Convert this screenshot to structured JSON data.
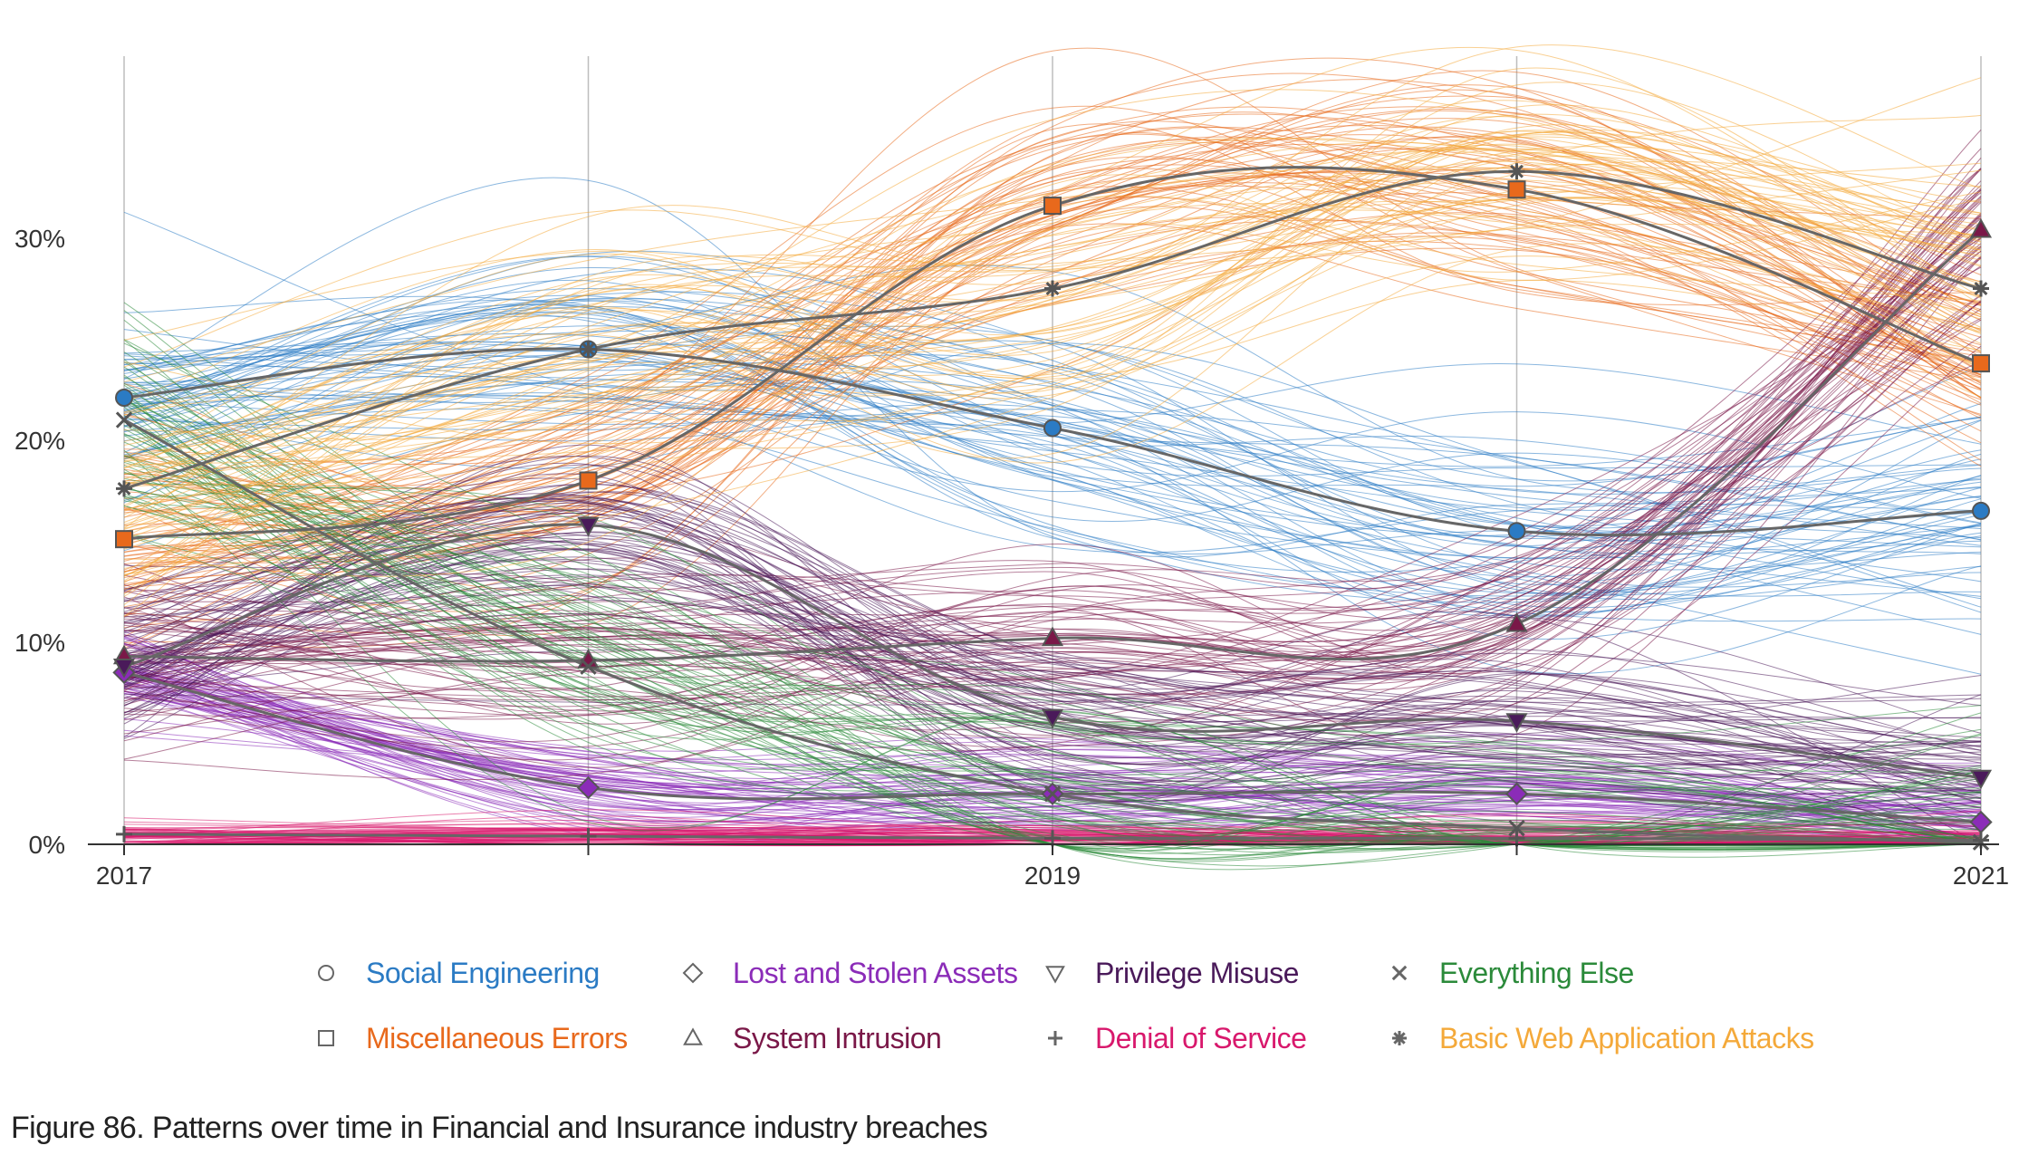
{
  "caption": "Figure 86. Patterns over time in Financial and Insurance industry breaches",
  "chart_data": {
    "type": "line",
    "title": "",
    "xlabel": "",
    "ylabel": "",
    "x": [
      2017,
      2018,
      2019,
      2020,
      2021
    ],
    "x_tick_labels": [
      "2017",
      "",
      "2019",
      "",
      "2021"
    ],
    "y_ticks": [
      0,
      10,
      20,
      30
    ],
    "y_tick_labels": [
      "0%",
      "10%",
      "20%",
      "30%"
    ],
    "ylim": [
      0,
      39
    ],
    "xlim": [
      2017,
      2021
    ],
    "grid": "vertical",
    "legend_position": "bottom",
    "series": [
      {
        "name": "Social Engineering",
        "marker": "circle",
        "color": "#2b7bc4",
        "values": [
          22.1,
          24.5,
          20.6,
          15.5,
          16.5
        ],
        "spread": 3.5
      },
      {
        "name": "Miscellaneous Errors",
        "marker": "square",
        "color": "#e8691c",
        "values": [
          15.1,
          18.0,
          31.6,
          32.4,
          23.8
        ],
        "spread": 3.5
      },
      {
        "name": "Lost and Stolen Assets",
        "marker": "diamond",
        "color": "#8b2cb8",
        "values": [
          8.5,
          2.8,
          2.5,
          2.5,
          1.1
        ],
        "spread": 1.5
      },
      {
        "name": "System Intrusion",
        "marker": "triangle-up",
        "color": "#7a1848",
        "values": [
          9.3,
          9.1,
          10.2,
          10.9,
          30.4
        ],
        "spread": 3.0
      },
      {
        "name": "Privilege Misuse",
        "marker": "triangle-down",
        "color": "#4a1a5a",
        "values": [
          8.8,
          15.8,
          6.3,
          6.1,
          3.3
        ],
        "spread": 2.5
      },
      {
        "name": "Denial of Service",
        "marker": "plus",
        "color": "#d8186c",
        "values": [
          0.5,
          0.4,
          0.3,
          0.3,
          0.2
        ],
        "spread": 0.5
      },
      {
        "name": "Everything Else",
        "marker": "x",
        "color": "#2b8a3a",
        "values": [
          21.0,
          8.8,
          2.5,
          0.8,
          0.1
        ],
        "spread": 3.5
      },
      {
        "name": "Basic Web Application Attacks",
        "marker": "asterisk",
        "color": "#f4a93a",
        "values": [
          17.6,
          24.5,
          27.5,
          33.3,
          27.5
        ],
        "spread": 4.0
      }
    ]
  },
  "colors": {
    "grid": "#bdbdbd",
    "axis": "#333333",
    "median_line": "#666666",
    "marker_stroke": "#555555"
  }
}
